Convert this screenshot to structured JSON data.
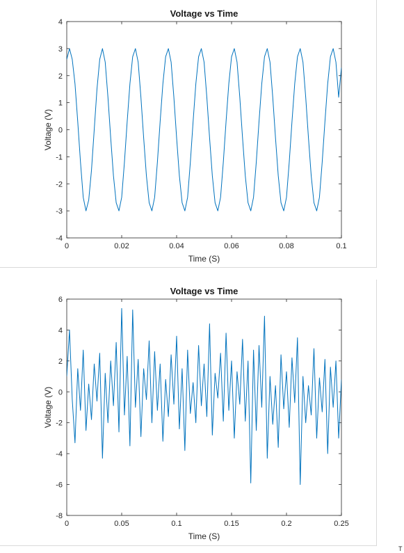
{
  "chart_data": [
    {
      "type": "line",
      "title": "Voltage vs Time",
      "xlabel": "Time (S)",
      "ylabel": "Voltage (V)",
      "xlim": [
        0,
        0.1
      ],
      "ylim": [
        -4,
        4
      ],
      "xticks": [
        0,
        0.02,
        0.04,
        0.06,
        0.08,
        0.1
      ],
      "xtick_labels": [
        "0",
        "0.02",
        "0.04",
        "0.06",
        "0.08",
        "0.1"
      ],
      "yticks": [
        -4,
        -3,
        -2,
        -1,
        0,
        1,
        2,
        3,
        4
      ],
      "ytick_labels": [
        "-4",
        "-3",
        "-2",
        "-1",
        "0",
        "1",
        "2",
        "3",
        "4"
      ],
      "grid": false,
      "color": "#0072bd",
      "series": [
        {
          "x": [
            0,
            0.001,
            0.002,
            0.003,
            0.004,
            0.005,
            0.006,
            0.007,
            0.008,
            0.009,
            0.01,
            0.011,
            0.012,
            0.013,
            0.014,
            0.015,
            0.016,
            0.017,
            0.018,
            0.019,
            0.02,
            0.021,
            0.022,
            0.023,
            0.024,
            0.025,
            0.026,
            0.027,
            0.028,
            0.029,
            0.03,
            0.031,
            0.032,
            0.033,
            0.034,
            0.035,
            0.036,
            0.037,
            0.038,
            0.039,
            0.04,
            0.041,
            0.042,
            0.043,
            0.044,
            0.045,
            0.046,
            0.047,
            0.048,
            0.049,
            0.05,
            0.051,
            0.052,
            0.053,
            0.054,
            0.055,
            0.056,
            0.057,
            0.058,
            0.059,
            0.06,
            0.061,
            0.062,
            0.063,
            0.064,
            0.065,
            0.066,
            0.067,
            0.068,
            0.069,
            0.07,
            0.071,
            0.072,
            0.073,
            0.074,
            0.075,
            0.076,
            0.077,
            0.078,
            0.079,
            0.08,
            0.081,
            0.082,
            0.083,
            0.084,
            0.085,
            0.086,
            0.087,
            0.088,
            0.089,
            0.09,
            0.091,
            0.092,
            0.093,
            0.094,
            0.095,
            0.096,
            0.097,
            0.098,
            0.099,
            0.1
          ],
          "y": [
            2.6,
            3.0,
            2.6,
            1.7,
            0.3,
            -1.2,
            -2.5,
            -3.0,
            -2.6,
            -1.5,
            0.0,
            1.5,
            2.6,
            3.0,
            2.5,
            1.2,
            -0.3,
            -1.7,
            -2.7,
            -3.0,
            -2.5,
            -1.2,
            0.3,
            1.7,
            2.7,
            3.0,
            2.5,
            1.2,
            -0.3,
            -1.7,
            -2.7,
            -3.0,
            -2.5,
            -1.2,
            0.3,
            1.7,
            2.7,
            3.0,
            2.5,
            1.2,
            -0.3,
            -1.7,
            -2.7,
            -3.0,
            -2.5,
            -1.2,
            0.3,
            1.7,
            2.7,
            3.0,
            2.5,
            1.2,
            -0.3,
            -1.7,
            -2.7,
            -3.0,
            -2.5,
            -1.2,
            0.3,
            1.7,
            2.7,
            3.0,
            2.5,
            1.2,
            -0.3,
            -1.7,
            -2.7,
            -3.0,
            -2.5,
            -1.2,
            0.3,
            1.7,
            2.7,
            3.0,
            2.5,
            1.2,
            -0.3,
            -1.7,
            -2.7,
            -3.0,
            -2.5,
            -1.2,
            0.3,
            1.7,
            2.7,
            3.0,
            2.5,
            1.2,
            -0.3,
            -1.7,
            -2.7,
            -3.0,
            -2.5,
            -1.2,
            0.3,
            1.7,
            2.7,
            3.0,
            2.5,
            1.2,
            2.3
          ]
        }
      ]
    },
    {
      "type": "line",
      "title": "Voltage vs Time",
      "xlabel": "Time (S)",
      "ylabel": "Voltage (V)",
      "xlim": [
        0,
        0.25
      ],
      "ylim": [
        -8,
        6
      ],
      "xticks": [
        0,
        0.05,
        0.1,
        0.15,
        0.2,
        0.25
      ],
      "xtick_labels": [
        "0",
        "0.05",
        "0.1",
        "0.15",
        "0.2",
        "0.25"
      ],
      "yticks": [
        -8,
        -6,
        -4,
        -2,
        0,
        2,
        4,
        6
      ],
      "ytick_labels": [
        "-8",
        "-6",
        "-4",
        "-2",
        "0",
        "2",
        "4",
        "6"
      ],
      "grid": false,
      "color": "#0072bd",
      "series": [
        {
          "x": [
            0,
            0.0025,
            0.005,
            0.0075,
            0.01,
            0.0125,
            0.015,
            0.0175,
            0.02,
            0.0225,
            0.025,
            0.0275,
            0.03,
            0.0325,
            0.035,
            0.0375,
            0.04,
            0.0425,
            0.045,
            0.0475,
            0.05,
            0.0525,
            0.055,
            0.0575,
            0.06,
            0.0625,
            0.065,
            0.0675,
            0.07,
            0.0725,
            0.075,
            0.0775,
            0.08,
            0.0825,
            0.085,
            0.0875,
            0.09,
            0.0925,
            0.095,
            0.0975,
            0.1,
            0.1025,
            0.105,
            0.1075,
            0.11,
            0.1125,
            0.115,
            0.1175,
            0.12,
            0.1225,
            0.125,
            0.1275,
            0.13,
            0.1325,
            0.135,
            0.1375,
            0.14,
            0.1425,
            0.145,
            0.1475,
            0.15,
            0.1525,
            0.155,
            0.1575,
            0.16,
            0.1625,
            0.165,
            0.1675,
            0.17,
            0.1725,
            0.175,
            0.1775,
            0.18,
            0.1825,
            0.185,
            0.1875,
            0.19,
            0.1925,
            0.195,
            0.1975,
            0.2,
            0.2025,
            0.205,
            0.2075,
            0.21,
            0.2125,
            0.215,
            0.2175,
            0.22,
            0.2225,
            0.225,
            0.2275,
            0.23,
            0.2325,
            0.235,
            0.2375,
            0.24,
            0.2425,
            0.245,
            0.2475,
            0.25
          ],
          "y": [
            1.0,
            4.0,
            -0.5,
            -3.3,
            1.5,
            -1.2,
            2.7,
            -2.5,
            0.5,
            -1.8,
            1.8,
            -0.6,
            2.5,
            -4.3,
            1.2,
            -2.0,
            2.0,
            -0.9,
            3.2,
            -2.6,
            5.4,
            -1.5,
            2.3,
            -3.5,
            5.3,
            -1.0,
            2.1,
            -2.9,
            1.5,
            -0.5,
            3.3,
            -2.0,
            2.6,
            -1.2,
            1.8,
            -3.2,
            0.8,
            -1.6,
            2.4,
            -0.8,
            3.6,
            -2.4,
            1.5,
            -3.8,
            2.7,
            -1.4,
            0.6,
            -2.0,
            3.0,
            -0.9,
            1.8,
            -1.6,
            4.4,
            -2.8,
            1.2,
            -0.4,
            2.5,
            -1.9,
            3.8,
            -1.2,
            2.0,
            -3.0,
            1.3,
            -0.8,
            3.4,
            -1.9,
            2.0,
            -5.9,
            2.7,
            -2.5,
            3.0,
            -1.0,
            4.9,
            -4.3,
            1.0,
            -2.1,
            0.4,
            -3.6,
            2.4,
            -1.1,
            1.3,
            -2.3,
            2.2,
            -0.7,
            3.5,
            -6.0,
            1.0,
            -2.0,
            0.4,
            -1.5,
            2.8,
            -3.0,
            0.9,
            -1.3,
            2.1,
            -4.0,
            1.6,
            -1.0,
            2.0,
            -3.0,
            0.8
          ]
        }
      ]
    }
  ],
  "footer": {
    "stray_text": "T"
  }
}
